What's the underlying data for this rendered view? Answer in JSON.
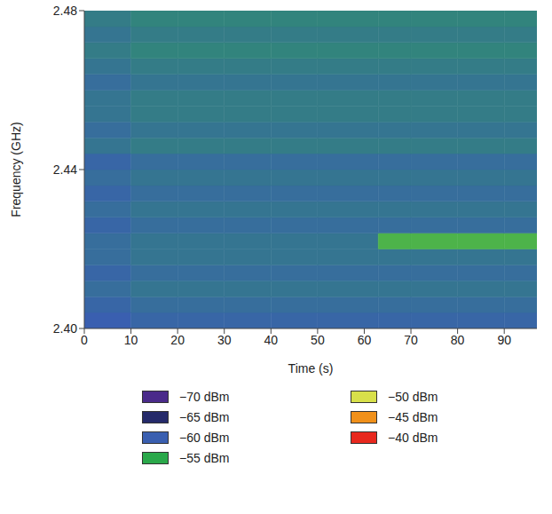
{
  "chart_data": {
    "type": "heatmap",
    "x_label": "Time (s)",
    "y_label": "Frequency (GHz)",
    "xlim": [
      0,
      97
    ],
    "xticks": [
      0,
      10,
      20,
      30,
      40,
      50,
      60,
      70,
      80,
      90
    ],
    "ylim": [
      2.4,
      2.48
    ],
    "yticks": [
      {
        "value": 2.4,
        "label": "2.40"
      },
      {
        "value": 2.44,
        "label": "2.44"
      },
      {
        "value": 2.48,
        "label": "2.48"
      }
    ],
    "x_edges": [
      0,
      10,
      20,
      30,
      40,
      50,
      63,
      70,
      80,
      90,
      97
    ],
    "y_edges": [
      2.4,
      2.404,
      2.408,
      2.412,
      2.416,
      2.42,
      2.424,
      2.428,
      2.432,
      2.436,
      2.44,
      2.444,
      2.448,
      2.452,
      2.456,
      2.46,
      2.464,
      2.468,
      2.472,
      2.476,
      2.48
    ],
    "cells": [
      [
        -60,
        -59.5,
        -59.5,
        -59.5,
        -59.5,
        -59.5,
        -59.5,
        -59.5,
        -59.5,
        -59.5
      ],
      [
        -59.5,
        -59,
        -59,
        -59,
        -59,
        -59,
        -59,
        -59,
        -59,
        -59
      ],
      [
        -59,
        -58.5,
        -58.5,
        -58.5,
        -58.5,
        -58.5,
        -58.5,
        -58.5,
        -58.5,
        -58.5
      ],
      [
        -59.5,
        -59,
        -59,
        -59,
        -59,
        -59,
        -59,
        -59,
        -59,
        -59
      ],
      [
        -59,
        -58.5,
        -58.5,
        -58.5,
        -58.5,
        -58.5,
        -58.5,
        -58.5,
        -58.5,
        -58.5
      ],
      [
        -59,
        -58.5,
        -58.5,
        -58.5,
        -58.5,
        -58.5,
        -54,
        -54,
        -54,
        -54
      ],
      [
        -59.5,
        -59,
        -59,
        -59,
        -59,
        -59,
        -59,
        -59,
        -59,
        -59
      ],
      [
        -59,
        -58.5,
        -58.5,
        -58.5,
        -58.5,
        -58.5,
        -58.5,
        -58.5,
        -58.5,
        -58.5
      ],
      [
        -59.5,
        -59,
        -59,
        -59,
        -59,
        -59,
        -59,
        -59,
        -59,
        -59
      ],
      [
        -59,
        -58.5,
        -58.5,
        -58.5,
        -58.5,
        -58.5,
        -58.5,
        -58.5,
        -58.5,
        -58.5
      ],
      [
        -59.5,
        -59,
        -59,
        -59,
        -59,
        -59,
        -59,
        -59,
        -59,
        -59
      ],
      [
        -58.5,
        -58,
        -58,
        -58,
        -58,
        -58,
        -58,
        -58,
        -58,
        -58
      ],
      [
        -59,
        -58.5,
        -58.5,
        -58.5,
        -58.5,
        -58.5,
        -58.5,
        -58.5,
        -58.5,
        -58.5
      ],
      [
        -58.5,
        -58,
        -58,
        -58,
        -58,
        -58,
        -58,
        -58,
        -58,
        -58
      ],
      [
        -58.5,
        -58,
        -58,
        -58,
        -58,
        -58,
        -58,
        -58,
        -58,
        -58
      ],
      [
        -59,
        -58.5,
        -58.5,
        -58.5,
        -58.5,
        -58.5,
        -58.5,
        -58.5,
        -58.5,
        -58.5
      ],
      [
        -58.5,
        -58,
        -58,
        -58,
        -58,
        -58,
        -58,
        -58,
        -58,
        -58
      ],
      [
        -58,
        -57.5,
        -57.5,
        -57.5,
        -57.5,
        -57.5,
        -57.5,
        -57.5,
        -57.5,
        -57.5
      ],
      [
        -58.5,
        -58,
        -58,
        -58,
        -58,
        -58,
        -58,
        -58,
        -58,
        -58
      ],
      [
        -58,
        -57.5,
        -57.5,
        -57.5,
        -57.5,
        -57.5,
        -57.5,
        -57.5,
        -57.5,
        -57.5
      ]
    ],
    "colorbar": {
      "values": [
        -70,
        -65,
        -60,
        -55,
        -50,
        -45,
        -40
      ],
      "labels": [
        "−70 dBm",
        "−65 dBm",
        "−60 dBm",
        "−55 dBm",
        "−50 dBm",
        "−45 dBm",
        "−40 dBm"
      ],
      "colors": [
        "#4a2a8a",
        "#252a6a",
        "#3a5fb0",
        "#2aa84a",
        "#d8e04a",
        "#f0901a",
        "#e8281e"
      ]
    }
  }
}
